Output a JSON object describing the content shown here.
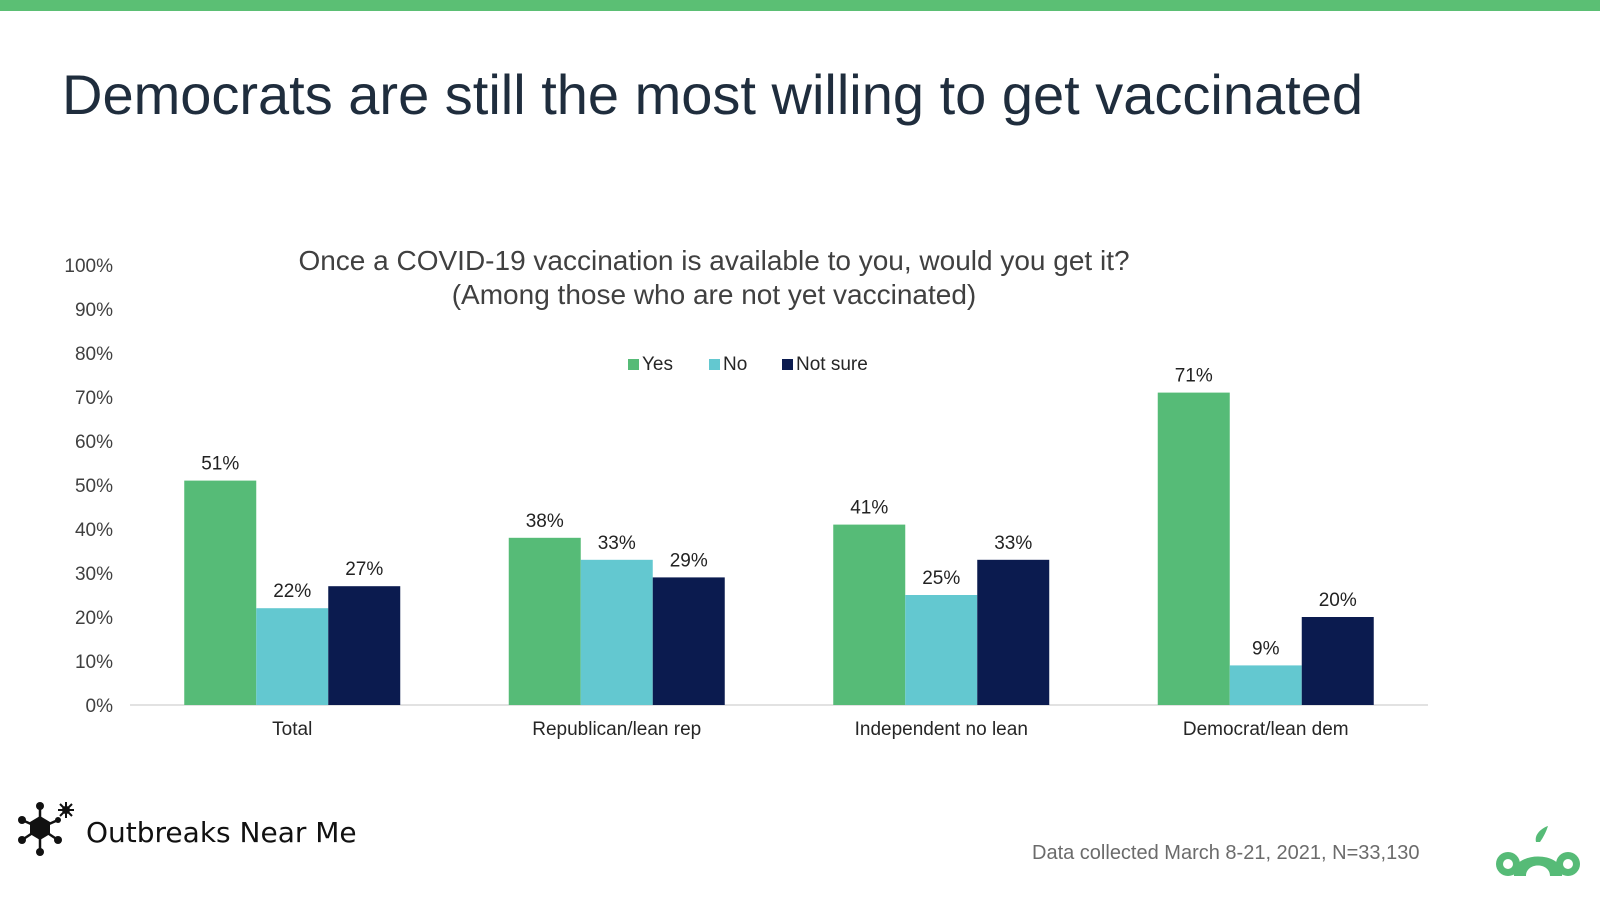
{
  "slide": {
    "title": "Democrats are still the most willing to get vaccinated",
    "accent_color": "#5bbf74"
  },
  "chart_data": {
    "type": "bar",
    "title": "Once a COVID-19 vaccination is available to you, would you get it?",
    "subtitle": "(Among those who are not yet vaccinated)",
    "categories": [
      "Total",
      "Republican/lean rep",
      "Independent no lean",
      "Democrat/lean dem"
    ],
    "series": [
      {
        "name": "Yes",
        "values": [
          51,
          38,
          41,
          71
        ],
        "color": "#56bb77"
      },
      {
        "name": "No",
        "values": [
          22,
          33,
          25,
          9
        ],
        "color": "#63c8d0"
      },
      {
        "name": "Not sure",
        "values": [
          27,
          29,
          33,
          20
        ],
        "color": "#0b1b4f"
      }
    ],
    "data_labels": [
      [
        "51%",
        "38%",
        "41%",
        "71%"
      ],
      [
        "22%",
        "33%",
        "25%",
        "9%"
      ],
      [
        "27%",
        "29%",
        "33%",
        "20%"
      ]
    ],
    "y_ticks": [
      "0%",
      "10%",
      "20%",
      "30%",
      "40%",
      "50%",
      "60%",
      "70%",
      "80%",
      "90%",
      "100%"
    ],
    "ylim": [
      0,
      100
    ],
    "grid": false,
    "legend_position": "top"
  },
  "footer": {
    "brand_name": "Outbreaks Near Me",
    "brand_icon": "virus-molecule-icon",
    "note": "Data collected March 8-21, 2021, N=33,130",
    "company_icon": "surveymonkey-logo-icon"
  }
}
